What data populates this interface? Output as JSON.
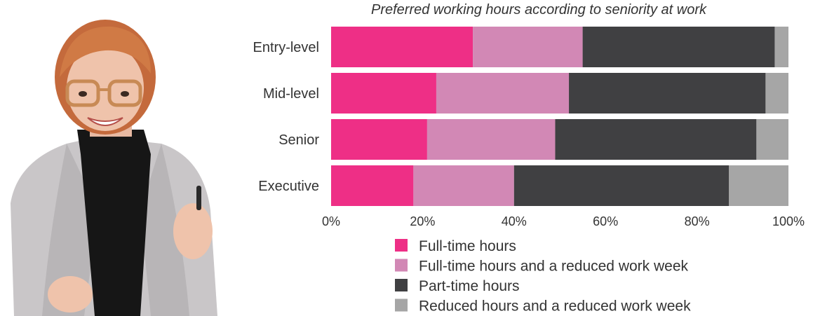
{
  "chart_data": {
    "type": "bar",
    "orientation": "horizontal",
    "stacked": true,
    "title": "Preferred working hours according to seniority at work",
    "categories": [
      "Entry-level",
      "Mid-level",
      "Senior",
      "Executive"
    ],
    "series": [
      {
        "name": "Full-time hours",
        "color": "#ee2f86",
        "values": [
          31,
          23,
          21,
          18
        ]
      },
      {
        "name": "Full-time hours and a reduced work week",
        "color": "#d288b5",
        "values": [
          24,
          29,
          28,
          22
        ]
      },
      {
        "name": "Part-time hours",
        "color": "#404042",
        "values": [
          42,
          43,
          44,
          47
        ]
      },
      {
        "name": "Reduced hours and a reduced work week",
        "color": "#a6a6a6",
        "values": [
          3,
          5,
          7,
          13
        ]
      }
    ],
    "xlim": [
      0,
      100
    ],
    "x_ticks": [
      "0%",
      "20%",
      "40%",
      "60%",
      "80%",
      "100%"
    ],
    "grid": false,
    "legend_position": "bottom"
  }
}
